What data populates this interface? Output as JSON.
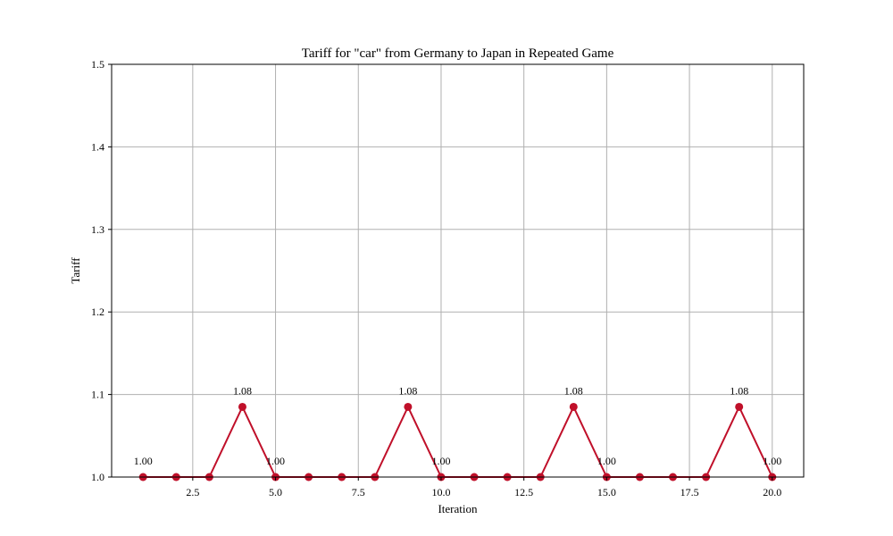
{
  "chart_data": {
    "type": "line",
    "title": "Tariff for \"car\" from Germany to Japan in Repeated Game",
    "xlabel": "Iteration",
    "ylabel": "Tariff",
    "xlim": [
      0.05,
      20.95
    ],
    "ylim": [
      1.0,
      1.5
    ],
    "grid": true,
    "xticks": [
      2.5,
      5.0,
      7.5,
      10.0,
      12.5,
      15.0,
      17.5,
      20.0
    ],
    "xtick_labels": [
      "2.5",
      "5.0",
      "7.5",
      "10.0",
      "12.5",
      "15.0",
      "17.5",
      "20.0"
    ],
    "yticks": [
      1.0,
      1.1,
      1.2,
      1.3,
      1.4,
      1.5
    ],
    "ytick_labels": [
      "1.0",
      "1.1",
      "1.2",
      "1.3",
      "1.4",
      "1.5"
    ],
    "series": [
      {
        "color": "#c0102a",
        "x": [
          1,
          2,
          3,
          4,
          5,
          6,
          7,
          8,
          9,
          10,
          11,
          12,
          13,
          14,
          15,
          16,
          17,
          18,
          19,
          20
        ],
        "y": [
          1.0,
          1.0,
          1.0,
          1.085,
          1.0,
          1.0,
          1.0,
          1.0,
          1.085,
          1.0,
          1.0,
          1.0,
          1.0,
          1.085,
          1.0,
          1.0,
          1.0,
          1.0,
          1.085,
          1.0
        ]
      }
    ],
    "annotations": [
      {
        "x": 1,
        "y": 1.0,
        "text": "1.00"
      },
      {
        "x": 4,
        "y": 1.085,
        "text": "1.08"
      },
      {
        "x": 5,
        "y": 1.0,
        "text": "1.00"
      },
      {
        "x": 9,
        "y": 1.085,
        "text": "1.08"
      },
      {
        "x": 10,
        "y": 1.0,
        "text": "1.00"
      },
      {
        "x": 14,
        "y": 1.085,
        "text": "1.08"
      },
      {
        "x": 15,
        "y": 1.0,
        "text": "1.00"
      },
      {
        "x": 19,
        "y": 1.085,
        "text": "1.08"
      },
      {
        "x": 20,
        "y": 1.0,
        "text": "1.00"
      }
    ]
  }
}
